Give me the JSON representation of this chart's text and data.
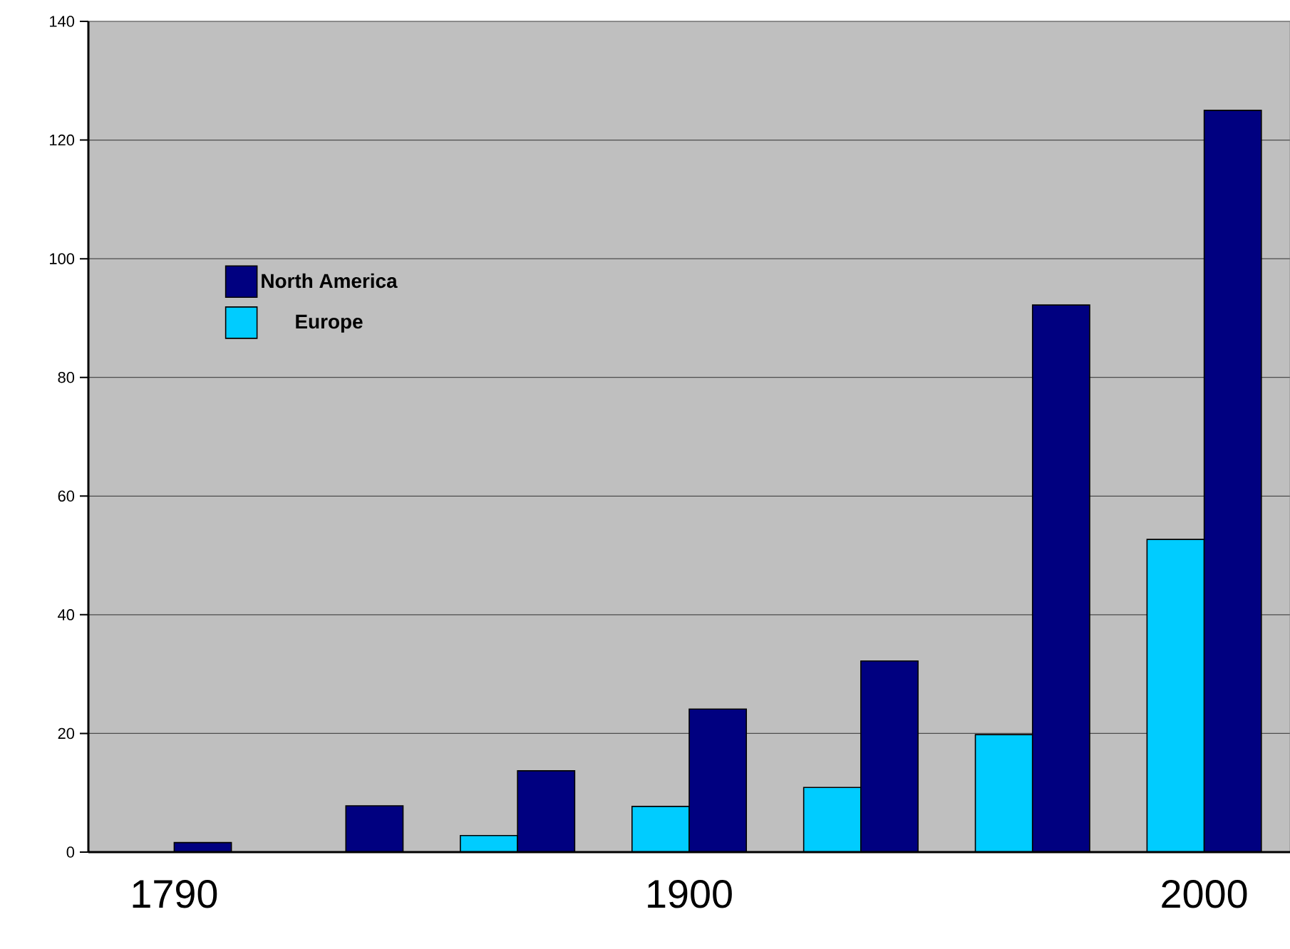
{
  "chart_data": {
    "type": "bar",
    "categories": [
      "1790",
      null,
      null,
      "1900",
      null,
      null,
      "2000"
    ],
    "series": [
      {
        "name": "Europe",
        "color": "#00ccff",
        "values": [
          null,
          null,
          2.8,
          7.7,
          10.9,
          19.8,
          52.7
        ]
      },
      {
        "name": "North America",
        "color": "#000080",
        "values": [
          1.6,
          7.8,
          13.7,
          24.1,
          32.2,
          92.2,
          125
        ]
      }
    ],
    "ylim": [
      0,
      140
    ],
    "yticks": [
      0,
      20,
      40,
      60,
      80,
      100,
      120,
      140
    ],
    "grid": "y",
    "legend": "top left"
  }
}
